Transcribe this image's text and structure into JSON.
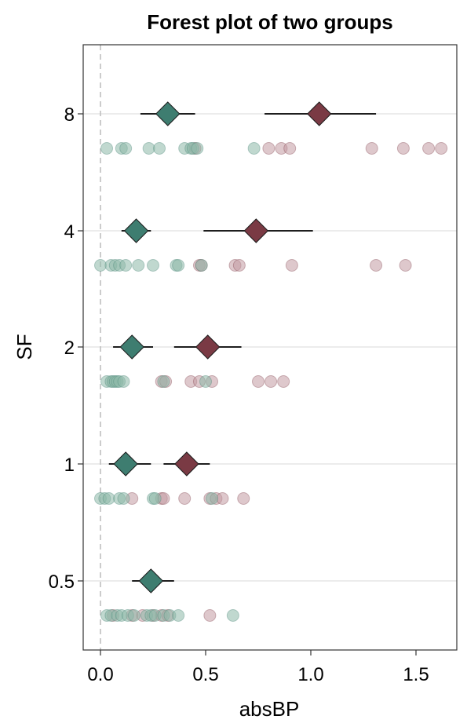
{
  "chart_data": {
    "type": "scatter",
    "title": "Forest plot of two groups",
    "xlabel": "absBP",
    "ylabel": "SF",
    "xlim": [
      -0.08,
      1.69
    ],
    "x_ticks": [
      0.0,
      0.5,
      1.0,
      1.5
    ],
    "x_tick_labels": [
      "0.0",
      "0.5",
      "1.0",
      "1.5"
    ],
    "categories": [
      "0.5",
      "1",
      "2",
      "4",
      "8"
    ],
    "grid": "horizontal",
    "reference_line": {
      "x": 0,
      "style": "dashed"
    },
    "colors": {
      "teal": "#3e7d70",
      "maroon": "#7a3a44",
      "teal_point": "#8db8a8",
      "maroon_point": "#c39aa3"
    },
    "series": [
      {
        "group": "teal",
        "estimates": [
          {
            "category": "0.5",
            "x": 0.24,
            "lo": 0.15,
            "hi": 0.35
          },
          {
            "category": "1",
            "x": 0.12,
            "lo": 0.04,
            "hi": 0.24
          },
          {
            "category": "2",
            "x": 0.15,
            "lo": 0.06,
            "hi": 0.25
          },
          {
            "category": "4",
            "x": 0.17,
            "lo": 0.1,
            "hi": 0.24
          },
          {
            "category": "8",
            "x": 0.32,
            "lo": 0.19,
            "hi": 0.45
          }
        ],
        "points": [
          {
            "category": "0.5",
            "x": [
              0.03,
              0.05,
              0.08,
              0.1,
              0.13,
              0.16,
              0.22,
              0.24,
              0.26,
              0.3,
              0.33,
              0.37,
              0.63
            ]
          },
          {
            "category": "1",
            "x": [
              0.0,
              0.02,
              0.04,
              0.09,
              0.11,
              0.25,
              0.26,
              0.53
            ]
          },
          {
            "category": "2",
            "x": [
              0.03,
              0.05,
              0.06,
              0.07,
              0.08,
              0.09,
              0.11,
              0.3,
              0.5
            ]
          },
          {
            "category": "4",
            "x": [
              0.0,
              0.05,
              0.07,
              0.09,
              0.12,
              0.18,
              0.25,
              0.36,
              0.37,
              0.48
            ]
          },
          {
            "category": "8",
            "x": [
              0.03,
              0.1,
              0.12,
              0.23,
              0.28,
              0.4,
              0.43,
              0.44,
              0.46,
              0.73
            ]
          }
        ]
      },
      {
        "group": "maroon",
        "estimates": [
          {
            "category": "1",
            "x": 0.41,
            "lo": 0.3,
            "hi": 0.52
          },
          {
            "category": "2",
            "x": 0.51,
            "lo": 0.35,
            "hi": 0.67
          },
          {
            "category": "4",
            "x": 0.74,
            "lo": 0.49,
            "hi": 1.01
          },
          {
            "category": "8",
            "x": 1.04,
            "lo": 0.78,
            "hi": 1.31
          }
        ],
        "points": [
          {
            "category": "0.5",
            "x": [
              0.06,
              0.15,
              0.2,
              0.25,
              0.29,
              0.32,
              0.52
            ]
          },
          {
            "category": "1",
            "x": [
              0.15,
              0.29,
              0.3,
              0.4,
              0.52,
              0.55,
              0.58,
              0.68
            ]
          },
          {
            "category": "2",
            "x": [
              0.29,
              0.31,
              0.43,
              0.47,
              0.53,
              0.75,
              0.81,
              0.87
            ]
          },
          {
            "category": "4",
            "x": [
              0.47,
              0.48,
              0.64,
              0.66,
              0.91,
              1.31,
              1.45
            ]
          },
          {
            "category": "8",
            "x": [
              0.45,
              0.8,
              0.86,
              0.9,
              1.29,
              1.44,
              1.56,
              1.62
            ]
          }
        ]
      }
    ]
  }
}
